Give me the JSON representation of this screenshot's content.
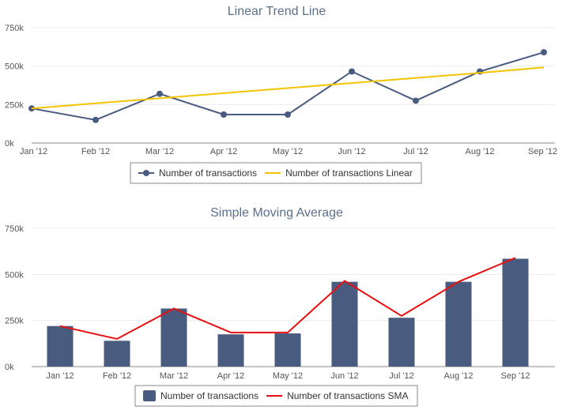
{
  "chart_data": [
    {
      "type": "line",
      "title": "Linear Trend Line",
      "categories": [
        "Jan '12",
        "Feb '12",
        "Mar '12",
        "Apr '12",
        "May '12",
        "Jun '12",
        "Jul '12",
        "Aug '12",
        "Sep '12"
      ],
      "y_ticks": [
        "0k",
        "250k",
        "500k",
        "750k"
      ],
      "ylim": [
        0,
        750000
      ],
      "grid": true,
      "legend_position": "bottom-center",
      "series": [
        {
          "name": "Number of transactions",
          "type": "line",
          "color": "#4a5b80",
          "values": [
            225000,
            150000,
            320000,
            185000,
            185000,
            465000,
            275000,
            465000,
            590000
          ]
        },
        {
          "name": "Number of transactions Linear",
          "type": "line",
          "color": "#f2c500",
          "values": [
            225000,
            258000,
            291000,
            324000,
            357000,
            390000,
            423000,
            456000,
            492000
          ]
        }
      ]
    },
    {
      "type": "bar",
      "title": "Simple Moving Average",
      "categories": [
        "Jan '12",
        "Feb '12",
        "Mar '12",
        "Apr '12",
        "May '12",
        "Jun '12",
        "Jul '12",
        "Aug '12",
        "Sep '12"
      ],
      "y_ticks": [
        "0k",
        "250k",
        "500k",
        "750k"
      ],
      "ylim": [
        0,
        750000
      ],
      "grid": true,
      "legend_position": "bottom-center",
      "series": [
        {
          "name": "Number of transactions",
          "type": "bar",
          "color": "#4a5b80",
          "values": [
            220000,
            140000,
            315000,
            175000,
            180000,
            460000,
            265000,
            460000,
            585000
          ]
        },
        {
          "name": "Number of transactions SMA",
          "type": "line",
          "color": "#e8100f",
          "values": [
            220000,
            150000,
            315000,
            185000,
            185000,
            465000,
            275000,
            460000,
            590000
          ]
        }
      ]
    }
  ]
}
